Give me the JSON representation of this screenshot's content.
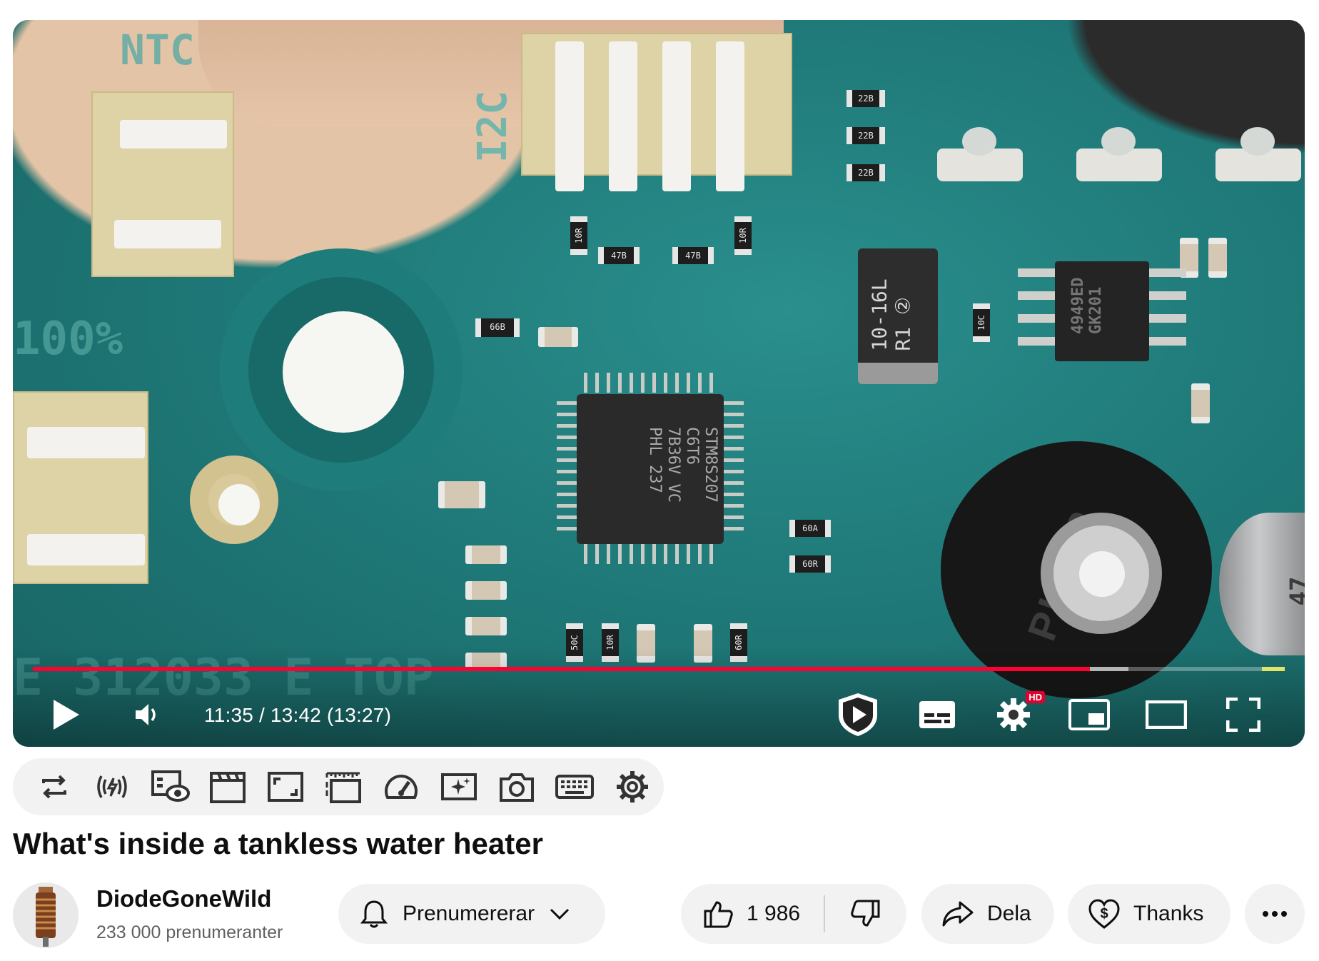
{
  "player": {
    "time_display": "11:35 / 13:42 (13:27)",
    "progress_fraction": 0.8445,
    "buffered_fraction": 0.875,
    "progress_color": "#ff0033",
    "hd_badge": "HD",
    "controls": {
      "play": "play-icon",
      "volume": "volume-icon",
      "autoplay": "shield-play-icon",
      "subtitles": "subtitles-icon",
      "settings": "gear-icon",
      "miniplayer": "miniplayer-icon",
      "theater": "theater-mode-icon",
      "fullscreen": "fullscreen-icon"
    },
    "board_silkscreen": {
      "ntc": "NTC",
      "i2c": "I2C",
      "percent": "100%",
      "board_id": "E 312033 E TOP",
      "mcu_marking": "STM8S207\nC6T6\n7B36V VC\nPHL 237",
      "power_resistor": "10-16L\nR1 ②",
      "regulator": "4949ED\nGK201",
      "pot_brand": "PIHER",
      "cap_value": "47",
      "smd_labels": [
        "22B",
        "22B",
        "22B",
        "10R",
        "47B",
        "47B",
        "10R",
        "66B",
        "10C",
        "60A",
        "60R",
        "50C",
        "10R",
        "60R"
      ]
    }
  },
  "extension_toolbar": {
    "icons": [
      "loop-icon",
      "stream-signal-icon",
      "focus-view-icon",
      "clapperboard-icon",
      "crop-icon",
      "ruler-frame-icon",
      "speedometer-icon",
      "sparkle-icon",
      "camera-icon",
      "keyboard-icon",
      "gear-icon"
    ]
  },
  "video": {
    "title": "What's inside a tankless water heater"
  },
  "channel": {
    "name": "DiodeGoneWild",
    "subscribers": "233 000 prenumeranter"
  },
  "actions": {
    "subscribe_label": "Prenumererar",
    "like_count": "1 986",
    "share_label": "Dela",
    "thanks_label": "Thanks"
  }
}
